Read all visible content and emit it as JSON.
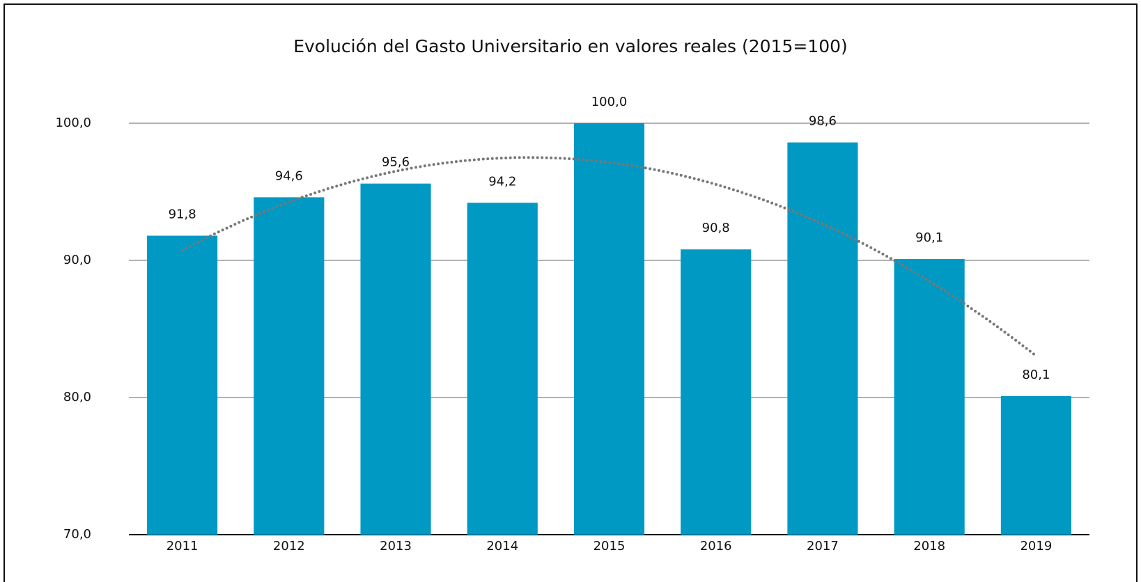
{
  "chart_data": {
    "type": "bar",
    "title": "Evolución del Gasto Universitario en valores reales (2015=100)",
    "categories": [
      "2011",
      "2012",
      "2013",
      "2014",
      "2015",
      "2016",
      "2017",
      "2018",
      "2019"
    ],
    "values": [
      91.8,
      94.6,
      95.6,
      94.2,
      100.0,
      90.8,
      98.6,
      90.1,
      80.1
    ],
    "value_labels": [
      "91,8",
      "94,6",
      "95,6",
      "94,2",
      "100,0",
      "90,8",
      "98,6",
      "90,1",
      "80,1"
    ],
    "color": "#0099c4",
    "ylim": [
      70,
      100
    ],
    "yticks": [
      {
        "value": 70,
        "label": "70,0"
      },
      {
        "value": 80,
        "label": "80,0"
      },
      {
        "value": 90,
        "label": "90,0"
      },
      {
        "value": 100,
        "label": "100,0"
      }
    ],
    "grid": true,
    "trendline": {
      "type": "polynomial",
      "order": 2,
      "color": "#777777"
    }
  }
}
